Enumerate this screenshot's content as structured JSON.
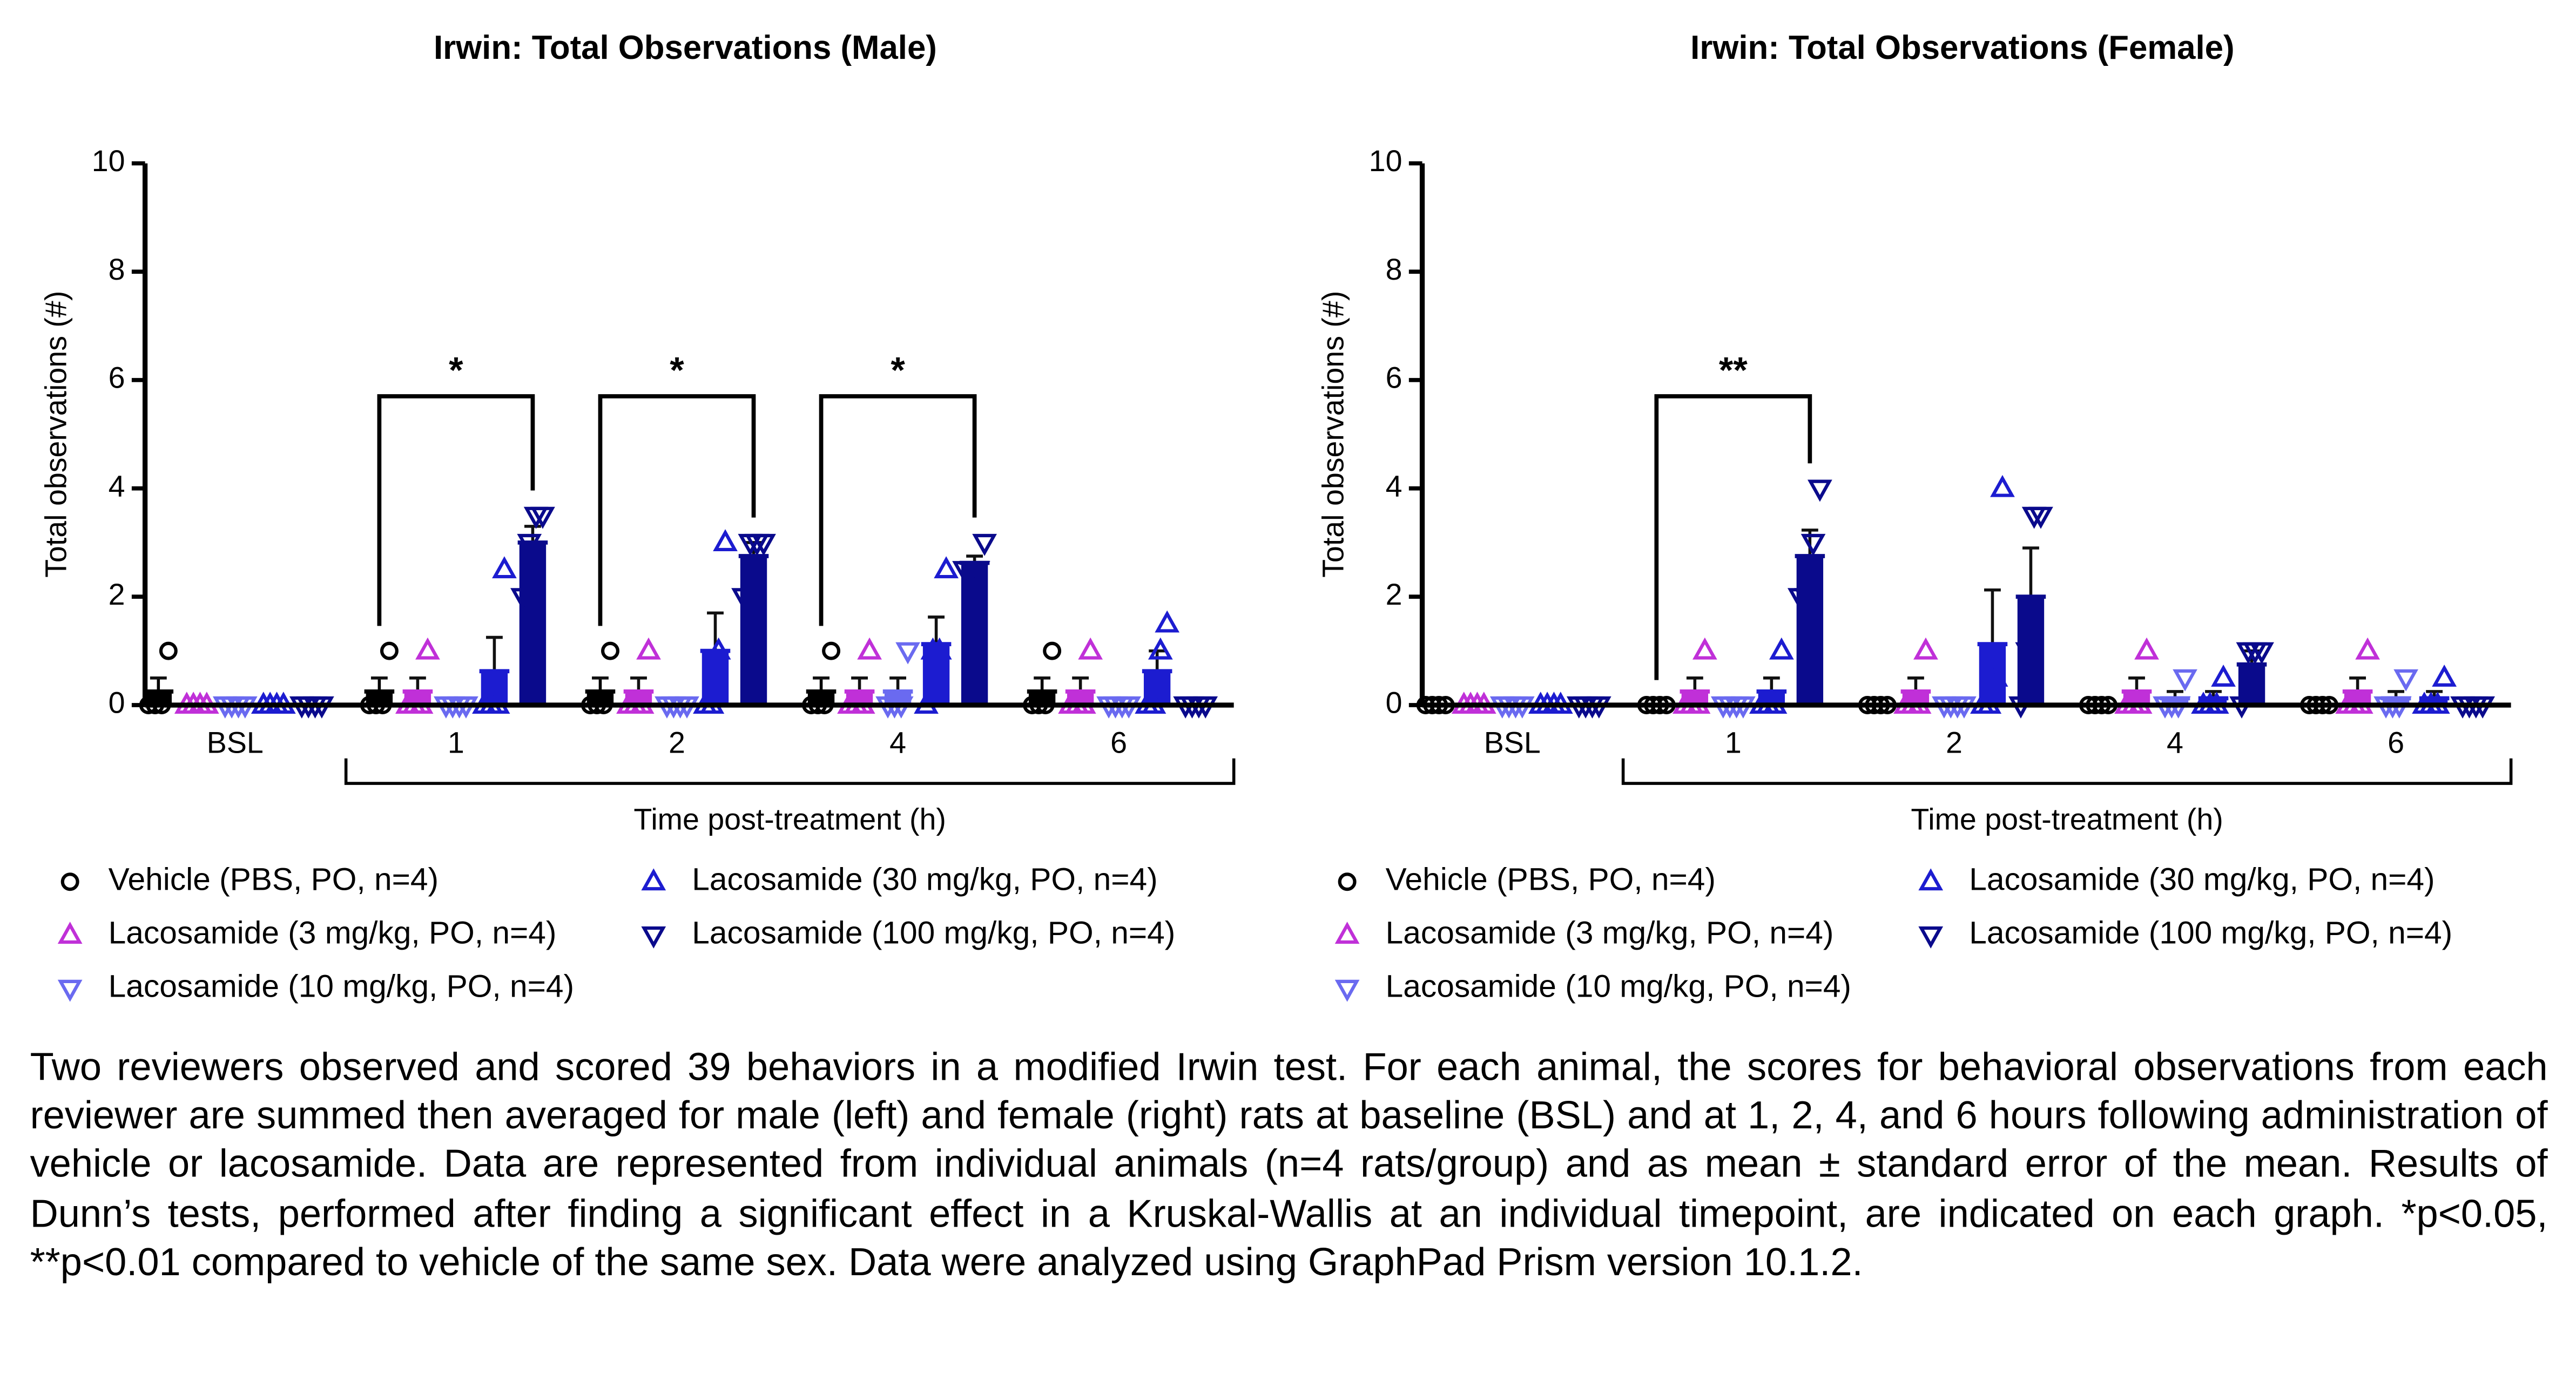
{
  "chart_data": [
    {
      "type": "bar",
      "title": "Irwin: Total Observations (Male)",
      "y_label": "Total observations (#)",
      "x_label": "Time post-treatment (h)",
      "categories": [
        "BSL",
        "1",
        "2",
        "4",
        "6"
      ],
      "ylim": [
        0,
        10
      ],
      "yticks": [
        0,
        2,
        4,
        6,
        8,
        10
      ],
      "series": [
        {
          "name": "Vehicle (PBS, PO, n=4)",
          "color": "#000000",
          "marker": "circle",
          "values": [
            0.25,
            0.25,
            0.25,
            0.25,
            0.25
          ],
          "errors": [
            0.25,
            0.25,
            0.25,
            0.25,
            0.25
          ],
          "points": [
            [
              0,
              0,
              0,
              1
            ],
            [
              0,
              0,
              0,
              1
            ],
            [
              0,
              0,
              0,
              1
            ],
            [
              0,
              0,
              0,
              1
            ],
            [
              0,
              0,
              0,
              1
            ]
          ]
        },
        {
          "name": "Lacosamide (3 mg/kg, PO, n=4)",
          "color": "#c030d8",
          "marker": "triangle-up",
          "values": [
            0,
            0.25,
            0.25,
            0.25,
            0.25
          ],
          "errors": [
            0,
            0.25,
            0.25,
            0.25,
            0.25
          ],
          "points": [
            [
              0,
              0,
              0,
              0
            ],
            [
              0,
              0,
              0,
              1
            ],
            [
              0,
              0,
              0,
              1
            ],
            [
              0,
              0,
              0,
              1
            ],
            [
              0,
              0,
              0,
              1
            ]
          ]
        },
        {
          "name": "Lacosamide (10 mg/kg, PO, n=4)",
          "color": "#6a6af0",
          "marker": "triangle-down",
          "values": [
            0,
            0,
            0,
            0.25,
            0
          ],
          "errors": [
            0,
            0,
            0,
            0.25,
            0
          ],
          "points": [
            [
              0,
              0,
              0,
              0
            ],
            [
              0,
              0,
              0,
              0
            ],
            [
              0,
              0,
              0,
              0
            ],
            [
              0,
              0,
              0,
              1
            ],
            [
              0,
              0,
              0,
              0
            ]
          ]
        },
        {
          "name": "Lacosamide (30 mg/kg, PO, n=4)",
          "color": "#1c1cd0",
          "marker": "triangle-up",
          "values": [
            0,
            0.625,
            1,
            1.125,
            0.625
          ],
          "errors": [
            0,
            0.625,
            0.7,
            0.5,
            0.375
          ],
          "points": [
            [
              0,
              0,
              0,
              0
            ],
            [
              0,
              0,
              0,
              2.5
            ],
            [
              0,
              0,
              1,
              3
            ],
            [
              0,
              1,
              1,
              2.5
            ],
            [
              0,
              0,
              1,
              1.5
            ]
          ]
        },
        {
          "name": "Lacosamide (100 mg/kg, PO, n=4)",
          "color": "#0a0a8c",
          "marker": "triangle-down",
          "values": [
            0,
            3,
            2.75,
            2.625,
            0
          ],
          "errors": [
            0,
            0.3,
            0.25,
            0.125,
            0
          ],
          "points": [
            [
              0,
              0,
              0,
              0
            ],
            [
              2,
              3,
              3.5,
              3.5
            ],
            [
              2,
              3,
              3,
              3
            ],
            [
              2.5,
              2.5,
              2.5,
              3
            ],
            [
              0,
              0,
              0,
              0
            ]
          ]
        }
      ],
      "annotations": [
        {
          "text": "*",
          "category": "1"
        },
        {
          "text": "*",
          "category": "2"
        },
        {
          "text": "*",
          "category": "4"
        }
      ]
    },
    {
      "type": "bar",
      "title": "Irwin: Total Observations (Female)",
      "y_label": "Total observations (#)",
      "x_label": "Time post-treatment (h)",
      "categories": [
        "BSL",
        "1",
        "2",
        "4",
        "6"
      ],
      "ylim": [
        0,
        10
      ],
      "yticks": [
        0,
        2,
        4,
        6,
        8,
        10
      ],
      "series": [
        {
          "name": "Vehicle (PBS, PO, n=4)",
          "color": "#000000",
          "marker": "circle",
          "values": [
            0,
            0,
            0,
            0,
            0
          ],
          "errors": [
            0,
            0,
            0,
            0,
            0
          ],
          "points": [
            [
              0,
              0,
              0,
              0
            ],
            [
              0,
              0,
              0,
              0
            ],
            [
              0,
              0,
              0,
              0
            ],
            [
              0,
              0,
              0,
              0
            ],
            [
              0,
              0,
              0,
              0
            ]
          ]
        },
        {
          "name": "Lacosamide (3 mg/kg, PO, n=4)",
          "color": "#c030d8",
          "marker": "triangle-up",
          "values": [
            0,
            0.25,
            0.25,
            0.25,
            0.25
          ],
          "errors": [
            0,
            0.25,
            0.25,
            0.25,
            0.25
          ],
          "points": [
            [
              0,
              0,
              0,
              0
            ],
            [
              0,
              0,
              0,
              1
            ],
            [
              0,
              0,
              0,
              1
            ],
            [
              0,
              0,
              0,
              1
            ],
            [
              0,
              0,
              0,
              1
            ]
          ]
        },
        {
          "name": "Lacosamide (10 mg/kg, PO, n=4)",
          "color": "#6a6af0",
          "marker": "triangle-down",
          "values": [
            0,
            0,
            0,
            0.125,
            0.125
          ],
          "errors": [
            0,
            0,
            0,
            0.125,
            0.125
          ],
          "points": [
            [
              0,
              0,
              0,
              0
            ],
            [
              0,
              0,
              0,
              0
            ],
            [
              0,
              0,
              0,
              0
            ],
            [
              0,
              0,
              0,
              0.5
            ],
            [
              0,
              0,
              0,
              0.5
            ]
          ]
        },
        {
          "name": "Lacosamide (30 mg/kg, PO, n=4)",
          "color": "#1c1cd0",
          "marker": "triangle-up",
          "values": [
            0,
            0.25,
            1.125,
            0.125,
            0.125
          ],
          "errors": [
            0,
            0.25,
            1,
            0.125,
            0.125
          ],
          "points": [
            [
              0,
              0,
              0,
              0
            ],
            [
              0,
              0,
              0,
              1
            ],
            [
              0,
              0,
              0.5,
              4
            ],
            [
              0,
              0,
              0,
              0.5
            ],
            [
              0,
              0,
              0,
              0.5
            ]
          ]
        },
        {
          "name": "Lacosamide (100 mg/kg, PO, n=4)",
          "color": "#0a0a8c",
          "marker": "triangle-down",
          "values": [
            0,
            2.75,
            2,
            0.75,
            0
          ],
          "errors": [
            0,
            0.48,
            0.9,
            0.25,
            0
          ],
          "points": [
            [
              0,
              0,
              0,
              0
            ],
            [
              2,
              2,
              3,
              4
            ],
            [
              0,
              1,
              3.5,
              3.5
            ],
            [
              0,
              1,
              1,
              1
            ],
            [
              0,
              0,
              0,
              0
            ]
          ]
        }
      ],
      "annotations": [
        {
          "text": "**",
          "category": "1"
        }
      ]
    }
  ],
  "caption": "Two reviewers observed and scored 39 behaviors in a modified Irwin test. For each animal, the scores for behavioral observations from each reviewer are summed then averaged for male (left) and female (right) rats at baseline (BSL) and at 1, 2, 4, and 6 hours following administration of vehicle or lacosamide. Data are represented from individual animals (n=4 rats/group) and as mean ± standard error of the mean. Results of Dunn’s tests, performed after finding a significant effect in a Kruskal-Wallis at an individual timepoint, are indicated on each graph. *p<0.05, **p<0.01 compared to vehicle of the same sex. Data were analyzed using GraphPad Prism version 10.1.2."
}
